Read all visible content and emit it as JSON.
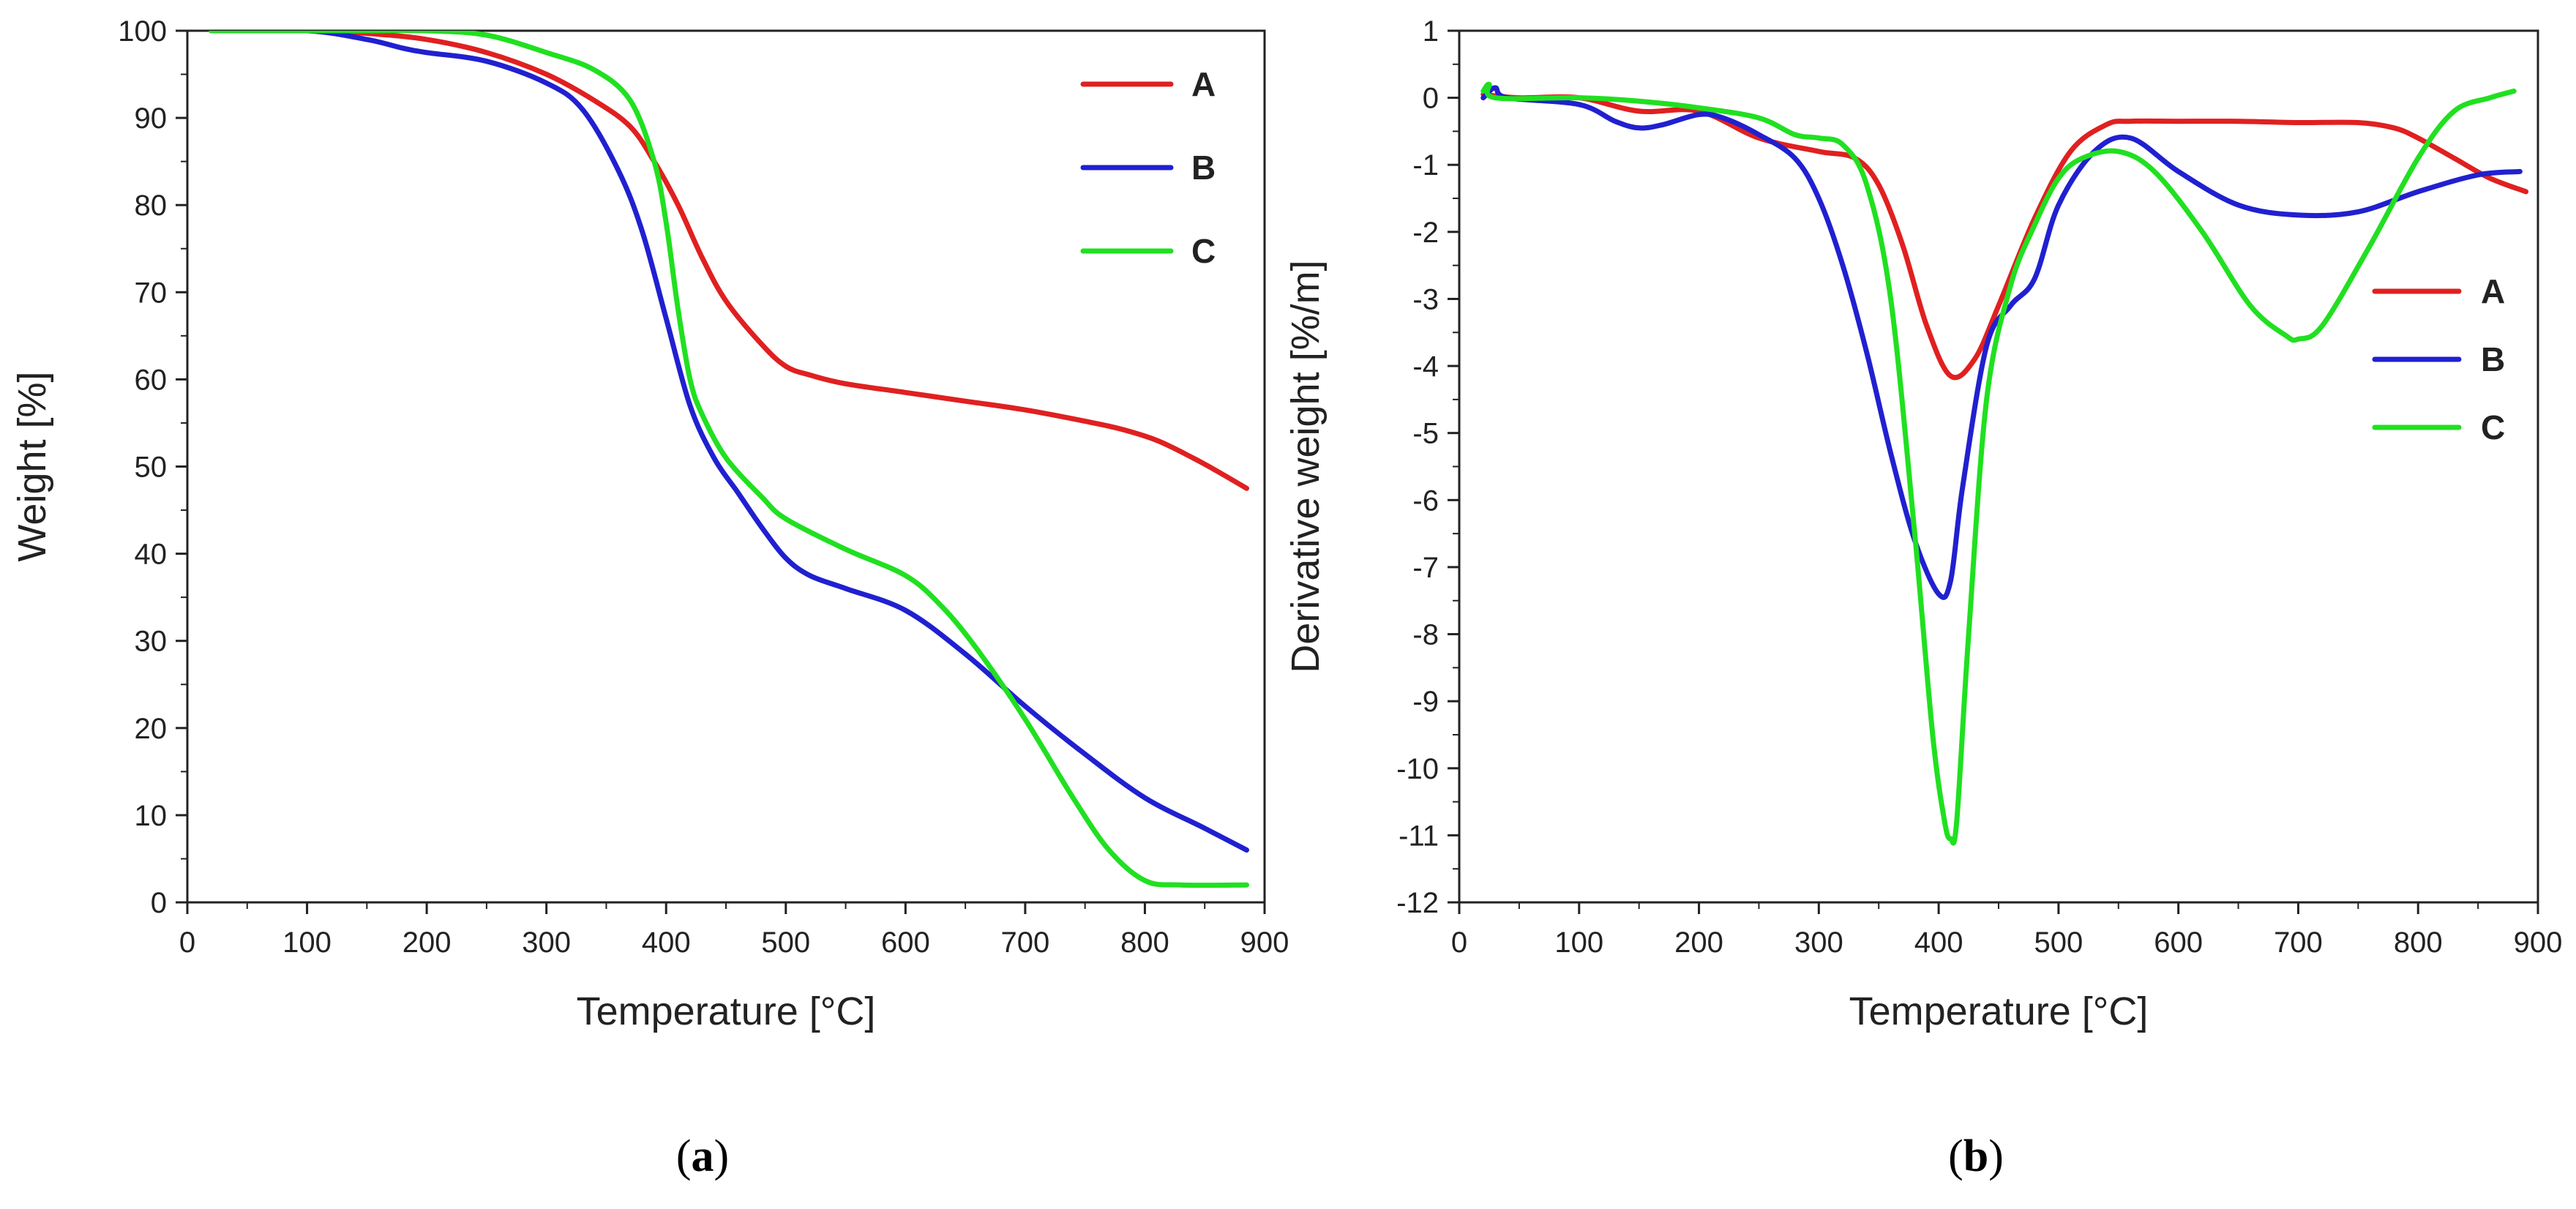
{
  "chart_data": [
    {
      "type": "line",
      "panel_label": "a",
      "xlabel": "Temperature [°C]",
      "ylabel": "Weight [%]",
      "xlim": [
        0,
        900
      ],
      "ylim": [
        0,
        100
      ],
      "x_ticks": [
        0,
        100,
        200,
        300,
        400,
        500,
        600,
        700,
        800,
        900
      ],
      "y_ticks": [
        0,
        10,
        20,
        30,
        40,
        50,
        60,
        70,
        80,
        90,
        100
      ],
      "legend_position": "top-right",
      "series": [
        {
          "name": "A",
          "color": "#e02020",
          "x": [
            20,
            100,
            150,
            200,
            250,
            300,
            340,
            370,
            390,
            410,
            430,
            450,
            480,
            500,
            520,
            550,
            600,
            650,
            700,
            750,
            780,
            810,
            840,
            860,
            885
          ],
          "y": [
            100,
            100,
            99.7,
            99,
            97.5,
            95,
            92,
            89,
            85,
            80,
            74,
            69,
            64,
            61.5,
            60.5,
            59.5,
            58.5,
            57.5,
            56.5,
            55.2,
            54.3,
            53,
            51,
            49.5,
            47.5
          ]
        },
        {
          "name": "B",
          "color": "#2020d0",
          "x": [
            20,
            100,
            150,
            180,
            200,
            250,
            300,
            330,
            360,
            380,
            400,
            420,
            440,
            460,
            480,
            500,
            520,
            550,
            600,
            650,
            700,
            750,
            800,
            850,
            885
          ],
          "y": [
            100,
            100,
            99,
            98,
            97.5,
            96.5,
            94,
            91,
            84,
            77,
            67,
            57,
            51,
            47,
            43,
            39.5,
            37.5,
            36,
            33.5,
            28.5,
            22.5,
            17,
            12,
            8.5,
            6
          ]
        },
        {
          "name": "C",
          "color": "#20e020",
          "x": [
            20,
            100,
            150,
            200,
            250,
            300,
            340,
            370,
            390,
            400,
            410,
            420,
            430,
            450,
            480,
            500,
            550,
            600,
            630,
            660,
            700,
            740,
            770,
            800,
            830,
            885
          ],
          "y": [
            100,
            100,
            100,
            100,
            99.5,
            97.5,
            95.5,
            92,
            85,
            78,
            68,
            60,
            56,
            51,
            46.5,
            44,
            40.5,
            37.5,
            34,
            29,
            21,
            12,
            6,
            2.5,
            2,
            2
          ]
        }
      ]
    },
    {
      "type": "line",
      "panel_label": "b",
      "xlabel": "Temperature [°C]",
      "ylabel": "Derivative weight [%/m]",
      "xlim": [
        0,
        900
      ],
      "ylim": [
        -12,
        1
      ],
      "x_ticks": [
        0,
        100,
        200,
        300,
        400,
        500,
        600,
        700,
        800,
        900
      ],
      "y_ticks": [
        1,
        0,
        -1,
        -2,
        -3,
        -4,
        -5,
        -6,
        -7,
        -8,
        -9,
        -10,
        -11,
        -12
      ],
      "legend_position": "right",
      "series": [
        {
          "name": "A",
          "color": "#e02020",
          "x": [
            20,
            50,
            100,
            150,
            200,
            250,
            300,
            330,
            350,
            370,
            390,
            410,
            430,
            450,
            480,
            510,
            540,
            560,
            600,
            650,
            700,
            750,
            780,
            800,
            830,
            860,
            890
          ],
          "y": [
            0.05,
            0,
            0,
            -0.2,
            -0.2,
            -0.6,
            -0.8,
            -0.9,
            -1.3,
            -2.2,
            -3.4,
            -4.15,
            -3.9,
            -3.1,
            -1.8,
            -0.8,
            -0.4,
            -0.35,
            -0.35,
            -0.35,
            -0.37,
            -0.37,
            -0.45,
            -0.6,
            -0.9,
            -1.2,
            -1.4
          ]
        },
        {
          "name": "B",
          "color": "#2020d0",
          "x": [
            20,
            30,
            40,
            100,
            130,
            150,
            170,
            200,
            220,
            250,
            280,
            300,
            320,
            340,
            360,
            380,
            400,
            410,
            420,
            440,
            460,
            480,
            500,
            530,
            560,
            600,
            650,
            700,
            750,
            800,
            850,
            885
          ],
          "y": [
            0,
            0.15,
            0,
            -0.1,
            -0.35,
            -0.45,
            -0.4,
            -0.25,
            -0.3,
            -0.55,
            -0.9,
            -1.5,
            -2.5,
            -3.8,
            -5.3,
            -6.6,
            -7.4,
            -7.2,
            -5.8,
            -3.7,
            -3.1,
            -2.7,
            -1.6,
            -0.8,
            -0.6,
            -1.1,
            -1.6,
            -1.75,
            -1.7,
            -1.4,
            -1.15,
            -1.1
          ]
        },
        {
          "name": "C",
          "color": "#20e020",
          "x": [
            20,
            25,
            30,
            100,
            150,
            200,
            250,
            280,
            300,
            320,
            340,
            360,
            380,
            395,
            405,
            410,
            415,
            425,
            440,
            460,
            480,
            500,
            520,
            550,
            580,
            620,
            660,
            690,
            700,
            720,
            760,
            800,
            830,
            860,
            880
          ],
          "y": [
            0.1,
            0.2,
            0,
            0,
            -0.05,
            -0.15,
            -0.3,
            -0.55,
            -0.6,
            -0.7,
            -1.3,
            -3,
            -6.5,
            -9.5,
            -10.8,
            -11.05,
            -10.8,
            -8,
            -4.5,
            -2.8,
            -1.9,
            -1.2,
            -0.9,
            -0.8,
            -1.1,
            -2,
            -3.1,
            -3.55,
            -3.6,
            -3.4,
            -2.2,
            -0.9,
            -0.2,
            0,
            0.1
          ]
        }
      ]
    }
  ]
}
